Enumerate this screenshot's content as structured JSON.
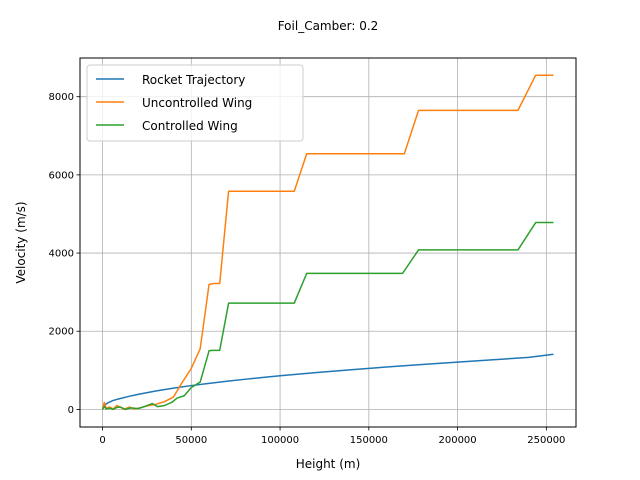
{
  "chart_data": {
    "type": "line",
    "title": "Foil_Camber: 0.2",
    "xlabel": "Height (m)",
    "ylabel": "Velocity (m/s)",
    "xlim": [
      -12700,
      266700
    ],
    "ylim": [
      -450,
      8990
    ],
    "xticks": [
      0,
      50000,
      100000,
      150000,
      200000,
      250000
    ],
    "yticks": [
      0,
      2000,
      4000,
      6000,
      8000
    ],
    "grid": true,
    "legend_position": "upper-left",
    "series": [
      {
        "name": "Rocket Trajectory",
        "color": "#1f77b4",
        "x": [
          0,
          1000,
          3000,
          6000,
          10000,
          15000,
          20000,
          30000,
          40000,
          50000,
          60000,
          70000,
          80000,
          90000,
          100000,
          120000,
          140000,
          160000,
          180000,
          200000,
          220000,
          240000,
          254000
        ],
        "y": [
          0,
          100,
          170,
          230,
          280,
          335,
          385,
          470,
          545,
          610,
          665,
          720,
          770,
          815,
          860,
          940,
          1015,
          1085,
          1150,
          1210,
          1270,
          1330,
          1410
        ]
      },
      {
        "name": "Uncontrolled Wing",
        "color": "#ff7f0e",
        "x": [
          0,
          1000,
          2000,
          4000,
          6000,
          8000,
          10000,
          12000,
          15000,
          18000,
          22000,
          26000,
          30000,
          35000,
          40000,
          45000,
          50000,
          55000,
          60000,
          63000,
          66000,
          71000,
          108000,
          115000,
          170000,
          178000,
          234000,
          244000,
          254000
        ],
        "y": [
          0,
          180,
          30,
          60,
          10,
          100,
          60,
          0,
          60,
          10,
          50,
          100,
          130,
          200,
          320,
          700,
          1050,
          1550,
          3200,
          3220,
          3220,
          5580,
          5580,
          6540,
          6540,
          7650,
          7650,
          8550,
          8550
        ]
      },
      {
        "name": "Controlled Wing",
        "color": "#2ca02c",
        "x": [
          0,
          1000,
          2000,
          4000,
          6000,
          8000,
          10000,
          13000,
          16000,
          20000,
          24000,
          28000,
          31000,
          35000,
          39000,
          42000,
          46000,
          50000,
          55000,
          60000,
          62000,
          66000,
          71000,
          108000,
          115000,
          169000,
          178000,
          234000,
          244000,
          254000
        ],
        "y": [
          0,
          80,
          10,
          30,
          0,
          50,
          60,
          0,
          40,
          20,
          80,
          150,
          70,
          100,
          180,
          290,
          350,
          560,
          700,
          1500,
          1510,
          1510,
          2720,
          2720,
          3480,
          3480,
          4080,
          4080,
          4780,
          4780
        ]
      }
    ]
  }
}
